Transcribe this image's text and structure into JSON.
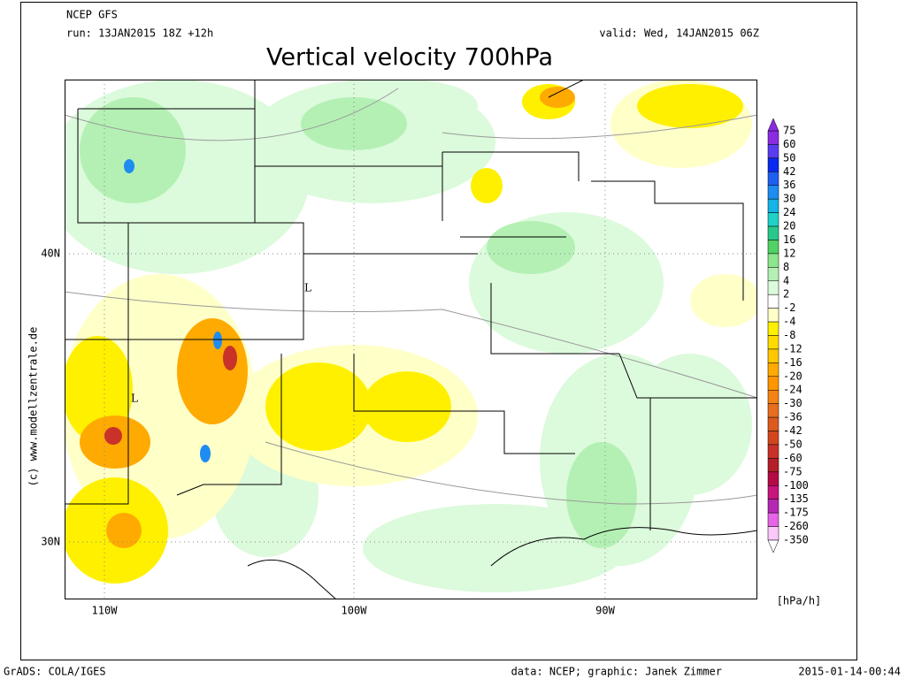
{
  "header": {
    "model": "NCEP GFS",
    "run": "run: 13JAN2015 18Z +12h",
    "valid": "valid: Wed, 14JAN2015 06Z",
    "title": "Vertical velocity 700hPa"
  },
  "map": {
    "lat_labels": [
      "40N",
      "30N"
    ],
    "lon_labels": [
      "110W",
      "100W",
      "90W"
    ],
    "lows": [
      "L",
      "L"
    ]
  },
  "colorbar": {
    "labels": [
      "75",
      "60",
      "50",
      "42",
      "36",
      "30",
      "24",
      "20",
      "16",
      "12",
      "8",
      "4",
      "2",
      "-2",
      "-4",
      "-8",
      "-12",
      "-16",
      "-20",
      "-24",
      "-30",
      "-36",
      "-42",
      "-50",
      "-60",
      "-75",
      "-100",
      "-135",
      "-175",
      "-260",
      "-350"
    ],
    "colors": [
      "#8a2be2",
      "#5a3cf0",
      "#0a28f0",
      "#1e5ff0",
      "#1e8cf0",
      "#14b4e6",
      "#1ed2c8",
      "#28c88c",
      "#50d264",
      "#8ce68c",
      "#b4f0b4",
      "#dcfadc",
      "#ffffff",
      "#ffffc8",
      "#fff000",
      "#ffdc00",
      "#ffc800",
      "#ffaa00",
      "#ff9600",
      "#f58214",
      "#e66e1e",
      "#dc5a1e",
      "#d2461e",
      "#c83228",
      "#b41e28",
      "#b40a46",
      "#c8147d",
      "#b428b4",
      "#e664e6",
      "#fac8fa"
    ],
    "top_arrow_color": "#8a2be2",
    "bottom_arrow_color": "#ffffff",
    "unit": "[hPa/h]"
  },
  "credit": "(c) www.modellzentrale.de",
  "footer": {
    "left": "GrADS: COLA/IGES",
    "center": "data: NCEP; graphic: Janek Zimmer",
    "right": "2015-01-14-00:44"
  }
}
